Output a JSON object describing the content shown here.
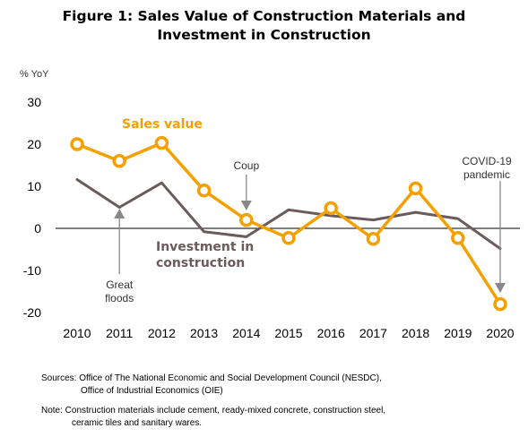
{
  "title_lines": [
    "Figure 1: Sales Value of Construction Materials and",
    "Investment in Construction"
  ],
  "chart_data": {
    "type": "line",
    "ylabel": "% YoY",
    "xlabel": "",
    "ylim": [
      -20,
      30
    ],
    "yticks": [
      30,
      20,
      10,
      0,
      -10,
      -20
    ],
    "categories": [
      "2010",
      "2011",
      "2012",
      "2013",
      "2014",
      "2015",
      "2016",
      "2017",
      "2018",
      "2019",
      "2020"
    ],
    "series": [
      {
        "name": "Sales value",
        "color": "#F5A000",
        "markers": true,
        "values": [
          20,
          16,
          20.3,
          9,
          2,
          -2.3,
          4.8,
          -2.5,
          9.5,
          -2.3,
          -18
        ]
      },
      {
        "name": "Investment in construction",
        "color": "#6B5B5C",
        "markers": false,
        "values": [
          11.6,
          5,
          10.8,
          -0.8,
          -2,
          4.4,
          3,
          2,
          3.8,
          2.3,
          -4.8
        ]
      }
    ],
    "grid": false,
    "zero_line": true,
    "series_labels": {
      "sales": "Sales value",
      "investment_line1": "Investment in",
      "investment_line2": "construction"
    },
    "annotations": [
      {
        "id": "great-floods",
        "lines": [
          "Great",
          "floods"
        ],
        "category": "2011",
        "arrow": "up"
      },
      {
        "id": "coup",
        "lines": [
          "Coup"
        ],
        "category": "2014",
        "arrow": "down"
      },
      {
        "id": "covid",
        "lines": [
          "COVID-19",
          "pandemic"
        ],
        "category": "2020",
        "arrow": "down"
      }
    ]
  },
  "notes": {
    "sources_line1": "Sources:  Office of The National Economic and Social Development Council (NESDC),",
    "sources_line2": "Office of Industrial Economics (OIE)",
    "note_line1": "Note: Construction materials include cement, ready-mixed concrete, construction steel,",
    "note_line2": "ceramic tiles and sanitary wares."
  }
}
